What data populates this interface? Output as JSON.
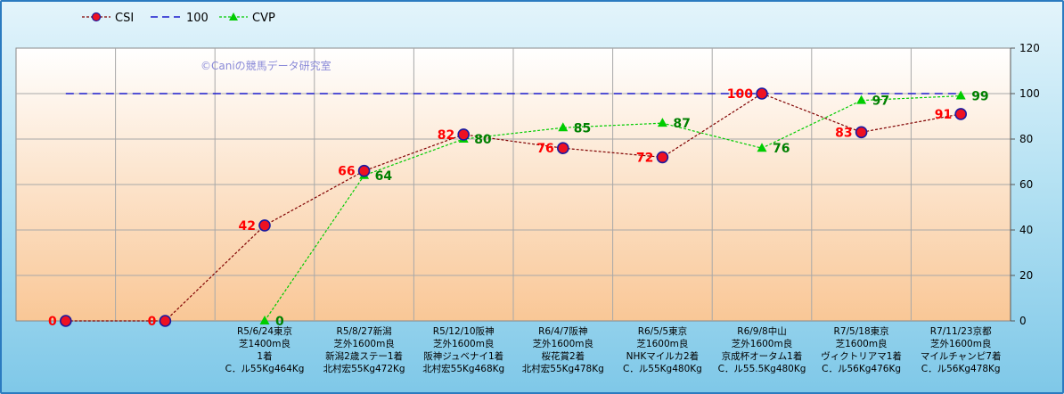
{
  "watermark": "©Caniの競馬データ研究室",
  "legend": [
    {
      "name": "CSI",
      "key": "csi"
    },
    {
      "name": "100",
      "key": "ref"
    },
    {
      "name": "CVP",
      "key": "cvp"
    }
  ],
  "colors": {
    "csi_line": "#800000",
    "csi_marker_fill": "#ee1122",
    "csi_marker_stroke": "#1a1aa0",
    "csi_label": "#ff0000",
    "ref_line": "#1a1acc",
    "cvp_line": "#00cc00",
    "cvp_label": "#008000",
    "plot_top": "#ffffff",
    "plot_bottom": "#f9c796"
  },
  "chart_data": {
    "type": "line",
    "ylim": [
      0,
      120
    ],
    "yticks": [
      0,
      20,
      40,
      60,
      80,
      100,
      120
    ],
    "grid": true,
    "legend_position": "top-left",
    "categories": [
      [],
      [],
      [
        "R5/6/24東京",
        "芝1400m良",
        "1着",
        "C．ル55Kg464Kg"
      ],
      [
        "R5/8/27新潟",
        "芝外1600m良",
        "新潟2歳ステー1着",
        "北村宏55Kg472Kg"
      ],
      [
        "R5/12/10阪神",
        "芝外1600m良",
        "阪神ジュベナイ1着",
        "北村宏55Kg468Kg"
      ],
      [
        "R6/4/7阪神",
        "芝外1600m良",
        "桜花賞2着",
        "北村宏55Kg478Kg"
      ],
      [
        "R6/5/5東京",
        "芝1600m良",
        "NHKマイルカ2着",
        "C．ル55Kg480Kg"
      ],
      [
        "R6/9/8中山",
        "芝外1600m良",
        "京成杯オータム1着",
        "C．ル55.5Kg480Kg"
      ],
      [
        "R7/5/18東京",
        "芝1600m良",
        "ヴィクトリアマ1着",
        "C．ル56Kg476Kg"
      ],
      [
        "R7/11/23京都",
        "芝外1600m良",
        "マイルチャンピ7着",
        "C．ル56Kg478Kg"
      ]
    ],
    "series": [
      {
        "name": "CSI",
        "values": [
          0,
          0,
          42,
          66,
          82,
          76,
          72,
          100,
          83,
          91
        ],
        "labels": [
          "0",
          "0",
          "42",
          "66",
          "82",
          "76",
          "72",
          "100",
          "83",
          "91"
        ]
      },
      {
        "name": "100",
        "values": [
          100,
          100,
          100,
          100,
          100,
          100,
          100,
          100,
          100,
          100
        ]
      },
      {
        "name": "CVP",
        "values": [
          null,
          null,
          0,
          64,
          80,
          85,
          87,
          76,
          97,
          99
        ],
        "labels": [
          "",
          "",
          "0",
          "64",
          "80",
          "85",
          "87",
          "76",
          "97",
          "99"
        ]
      }
    ]
  }
}
